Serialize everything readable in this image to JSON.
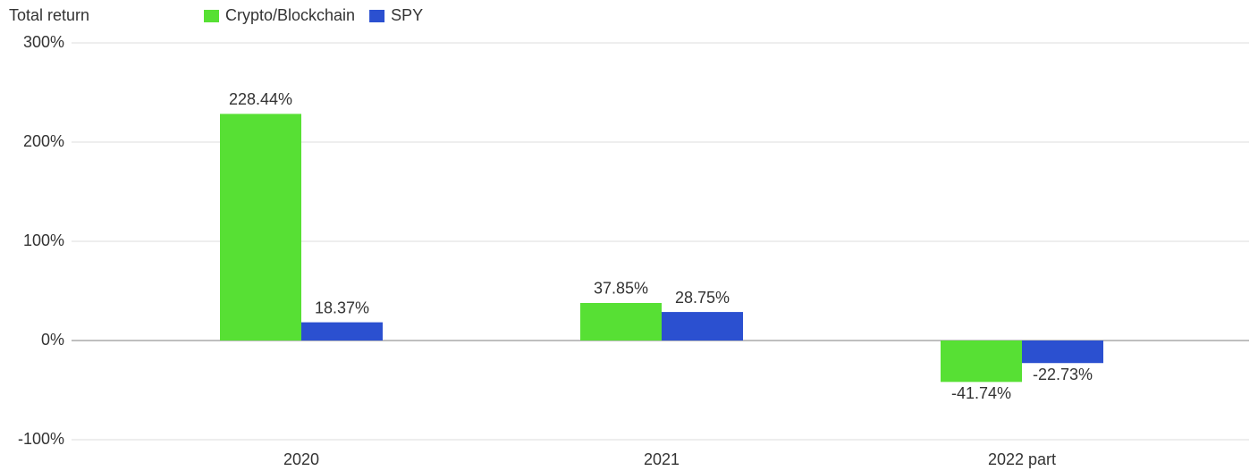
{
  "chart_data": {
    "type": "bar",
    "y_label": "Total return",
    "categories": [
      "2020",
      "2021",
      "2022 part"
    ],
    "series": [
      {
        "name": "Crypto/Blockchain",
        "color": "#57e034",
        "values": [
          228.44,
          37.85,
          -41.74
        ],
        "value_labels": [
          "228.44%",
          "37.85%",
          "-41.74%"
        ]
      },
      {
        "name": "SPY",
        "color": "#2b50d0",
        "values": [
          18.37,
          28.75,
          -22.73
        ],
        "value_labels": [
          "18.37%",
          "28.75%",
          "-22.73%"
        ]
      }
    ],
    "ylim": [
      -100,
      300
    ],
    "yticks": [
      {
        "value": 300,
        "label": "300%"
      },
      {
        "value": 200,
        "label": "200%"
      },
      {
        "value": 100,
        "label": "100%"
      },
      {
        "value": 0,
        "label": "0%"
      },
      {
        "value": -100,
        "label": "-100%"
      }
    ],
    "grid": true,
    "legend": "top"
  }
}
